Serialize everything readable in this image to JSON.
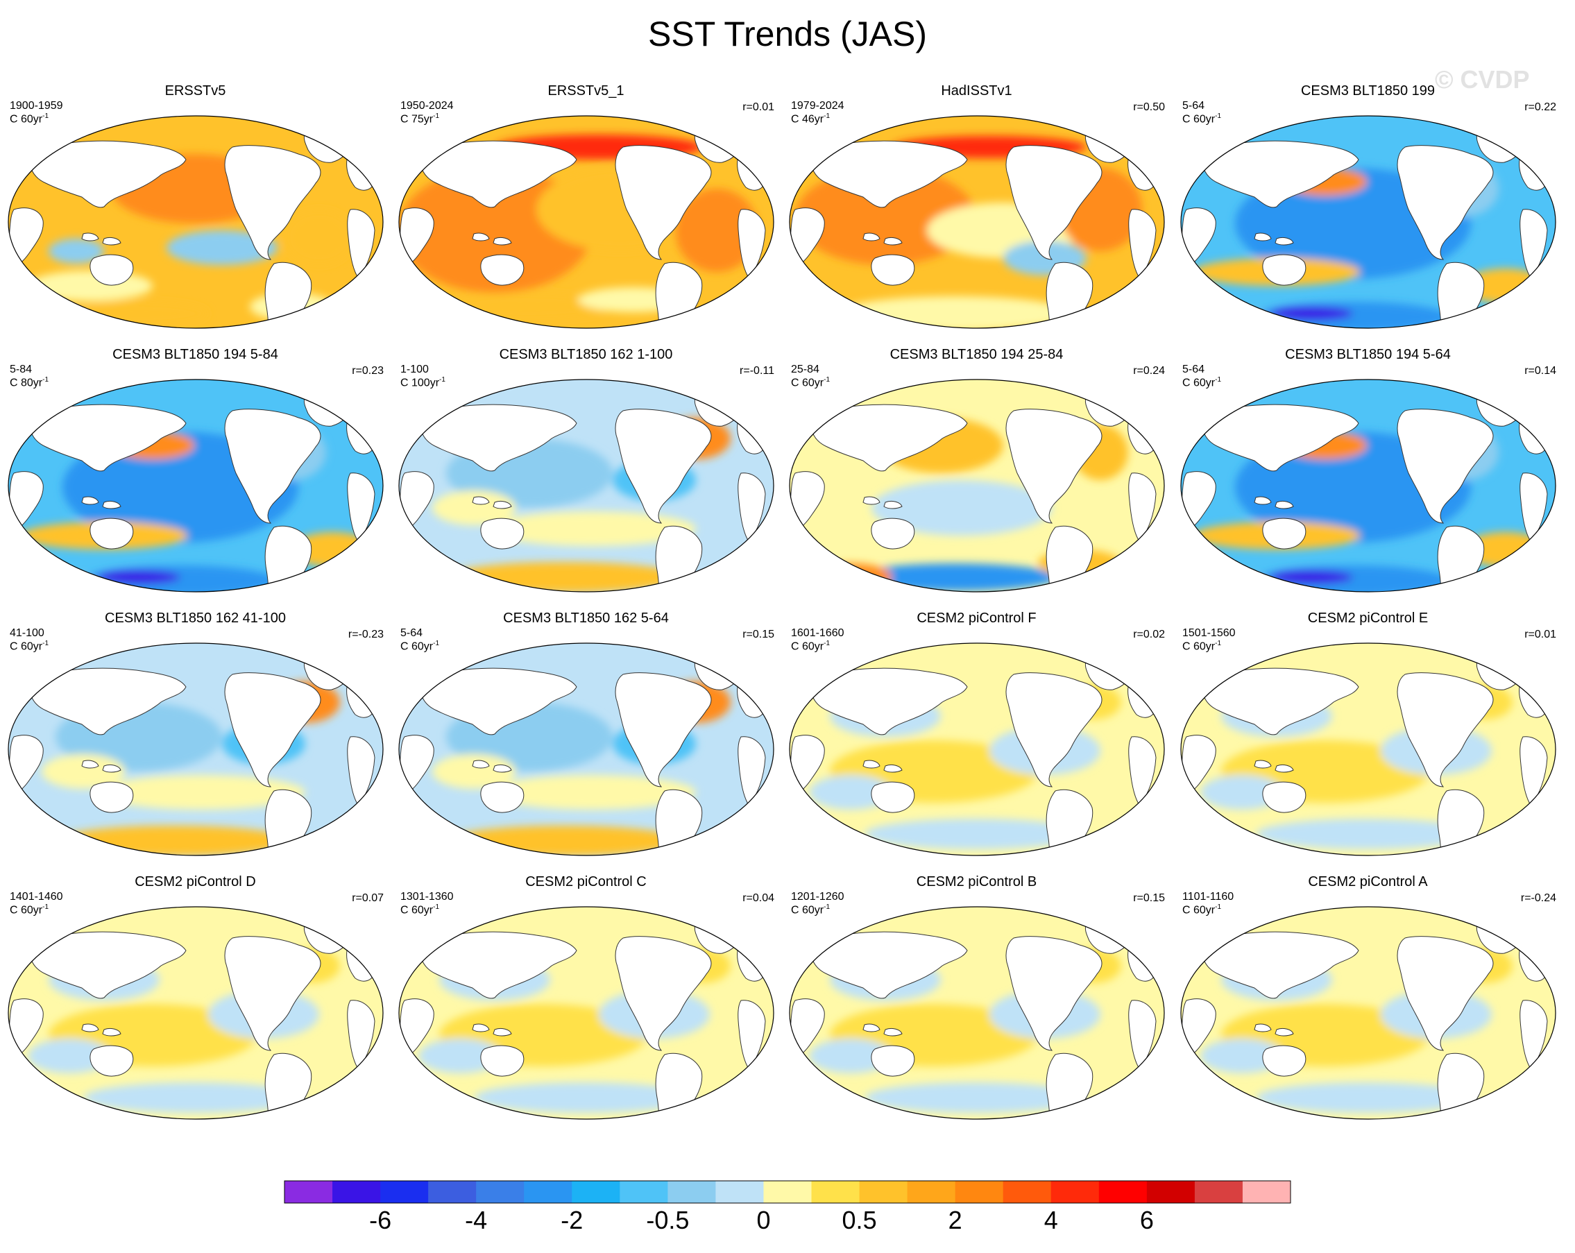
{
  "figure": {
    "title": "SST Trends (JAS)",
    "watermark": "© CVDP"
  },
  "panels": [
    {
      "title": "ERSSTv5",
      "period": "1900-1959",
      "scale": "C 60yr",
      "corr": "",
      "pattern": "warm_obs_a"
    },
    {
      "title": "ERSSTv5_1",
      "period": "1950-2024",
      "scale": "C 75yr",
      "corr": "r=0.01",
      "pattern": "warm_obs_b"
    },
    {
      "title": "HadISSTv1",
      "period": "1979-2024",
      "scale": "C 46yr",
      "corr": "r=0.50",
      "pattern": "warm_obs_c"
    },
    {
      "title": "CESM3 BLT1850 199",
      "period": "5-64",
      "scale": "C 60yr",
      "corr": "r=0.22",
      "pattern": "cold_strong"
    },
    {
      "title": "CESM3 BLT1850 194 5-84",
      "period": "5-84",
      "scale": "C 80yr",
      "corr": "r=0.23",
      "pattern": "cold_strong"
    },
    {
      "title": "CESM3 BLT1850 162 1-100",
      "period": "1-100",
      "scale": "C 100yr",
      "corr": "r=-0.11",
      "pattern": "mixed_cool"
    },
    {
      "title": "CESM3 BLT1850 194 25-84",
      "period": "25-84",
      "scale": "C 60yr",
      "corr": "r=0.24",
      "pattern": "mixed_warm"
    },
    {
      "title": "CESM3 BLT1850 194 5-64",
      "period": "5-64",
      "scale": "C 60yr",
      "corr": "r=0.14",
      "pattern": "cold_strong"
    },
    {
      "title": "CESM3 BLT1850 162 41-100",
      "period": "41-100",
      "scale": "C 60yr",
      "corr": "r=-0.23",
      "pattern": "mixed_cool"
    },
    {
      "title": "CESM3 BLT1850 162 5-64",
      "period": "5-64",
      "scale": "C 60yr",
      "corr": "r=0.15",
      "pattern": "mixed_cool"
    },
    {
      "title": "CESM2 piControl F",
      "period": "1601-1660",
      "scale": "C 60yr",
      "corr": "r=0.02",
      "pattern": "weak"
    },
    {
      "title": "CESM2 piControl E",
      "period": "1501-1560",
      "scale": "C 60yr",
      "corr": "r=0.01",
      "pattern": "weak"
    },
    {
      "title": "CESM2 piControl D",
      "period": "1401-1460",
      "scale": "C 60yr",
      "corr": "r=0.07",
      "pattern": "weak"
    },
    {
      "title": "CESM2 piControl C",
      "period": "1301-1360",
      "scale": "C 60yr",
      "corr": "r=0.04",
      "pattern": "weak"
    },
    {
      "title": "CESM2 piControl B",
      "period": "1201-1260",
      "scale": "C 60yr",
      "corr": "r=0.15",
      "pattern": "weak"
    },
    {
      "title": "CESM2 piControl A",
      "period": "1101-1160",
      "scale": "C 60yr",
      "corr": "r=-0.24",
      "pattern": "weak"
    }
  ],
  "scale_superscript": "-1",
  "colorbar": {
    "colors": [
      "#8a2be2",
      "#3a14e6",
      "#1a2ef0",
      "#3c5ee0",
      "#3a7fe8",
      "#2a95f2",
      "#1cb2f5",
      "#4fc3f7",
      "#8ccdf0",
      "#bfe2f7",
      "#fff9a8",
      "#ffe14a",
      "#ffc22b",
      "#ffa61a",
      "#ff8710",
      "#ff5a0c",
      "#ff2a0a",
      "#ff0000",
      "#d20000",
      "#d94040",
      "#ffb3b3"
    ],
    "labels": [
      "-6",
      "-4",
      "-2",
      "-0.5",
      "0",
      "0.5",
      "2",
      "4",
      "6"
    ],
    "label_boundaries": [
      2,
      4,
      6,
      8,
      10,
      12,
      14,
      16,
      18
    ]
  },
  "map_colors": {
    "land": "#ffffff",
    "coast": "#333333",
    "strong_warm": "#ff8c1a",
    "warm": "#ffc22b",
    "mild_warm": "#ffe14a",
    "pale_warm": "#fff9a8",
    "pale_cool": "#bfe2f7",
    "cool": "#8ccdf0",
    "cold": "#4fc3f7",
    "strong_cold": "#2a95f2",
    "very_cold": "#3a14e6",
    "hot_spot": "#ff2a0a"
  }
}
